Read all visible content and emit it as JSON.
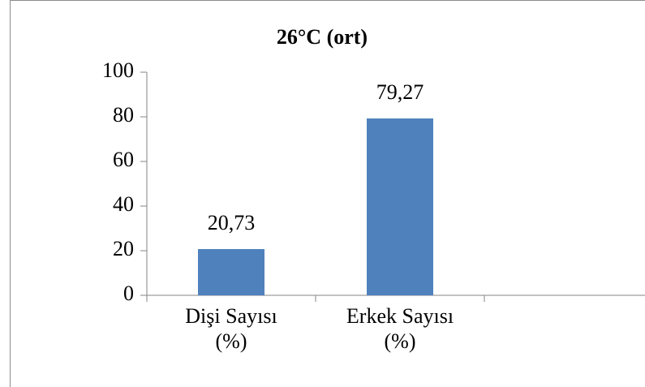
{
  "chart_data": {
    "type": "bar",
    "title": "26°C (ort)",
    "categories": [
      "Dişi Sayısı\n(%)",
      "Erkek Sayısı\n(%)",
      null
    ],
    "values": [
      20.73,
      79.27,
      null
    ],
    "value_labels": [
      "20,73",
      "79,27",
      null
    ],
    "color": "#4f81bd",
    "ylim": [
      0,
      100
    ],
    "yticks": [
      0,
      20,
      40,
      60,
      80,
      100
    ],
    "grid": false
  }
}
